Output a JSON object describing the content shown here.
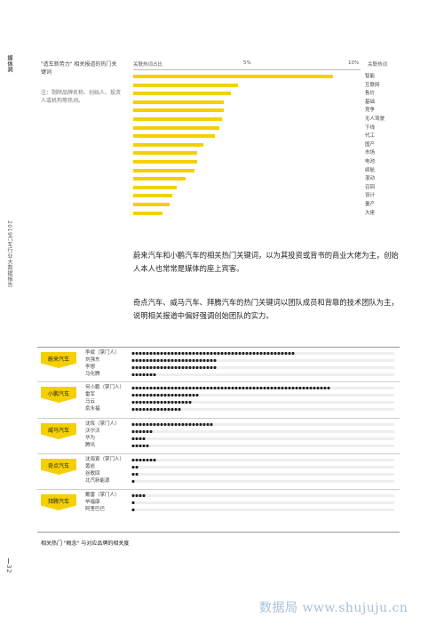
{
  "sidebar": {
    "top_label": "媒体洞",
    "report_label": "2019汽车行业大数据报告",
    "page_number": "32"
  },
  "notes": {
    "title": "\"造车新势力\" 相关报道的热门关键词",
    "subtitle": "注：剔除品牌名称、创始人、投资人或机构等热词。"
  },
  "chart_data": {
    "type": "bar",
    "orientation": "horizontal",
    "axis_left_label": "关联热词占比",
    "axis_mid_tick": "5%",
    "axis_right_tick": "10%",
    "keyword_header": "关联热词",
    "xlim": [
      0,
      10
    ],
    "categories": [
      "智能",
      "互联网",
      "售价",
      "基础",
      "竞争",
      "无人驾驶",
      "下线",
      "代工",
      "国产",
      "市场",
      "电池",
      "续航",
      "混动",
      "召回",
      "设计",
      "量产",
      "大佬"
    ],
    "values": [
      8.8,
      4.6,
      4.3,
      4.0,
      4.0,
      3.9,
      3.8,
      3.6,
      3.1,
      2.8,
      2.8,
      2.7,
      2.3,
      1.9,
      1.7,
      1.6,
      1.3
    ]
  },
  "paragraphs": {
    "p1": "蔚来汽车和小鹏汽车的相关热门关键词，以为其投资或背书的商业大佬为主，创始人本人也常常是媒体的座上宾客。",
    "p2": "奇点汽车、威马汽车、拜腾汽车的热门关键词以团队成员和背靠的技术团队为主，说明相关报道中偏好强调创始团队的实力。"
  },
  "relation_table": {
    "groups": [
      {
        "brand": "蔚来汽车",
        "people": [
          {
            "name": "李斌（掌门人）",
            "value": 0.62
          },
          {
            "name": "刘强东",
            "value": 0.33
          },
          {
            "name": "李想",
            "value": 0.33
          },
          {
            "name": "马化腾",
            "value": 0.09
          }
        ]
      },
      {
        "brand": "小鹏汽车",
        "people": [
          {
            "name": "何小鹏（掌门人）",
            "value": 0.76
          },
          {
            "name": "雷军",
            "value": 0.26
          },
          {
            "name": "马云",
            "value": 0.23
          },
          {
            "name": "俞永福",
            "value": 0.19
          }
        ]
      },
      {
        "brand": "威马汽车",
        "people": [
          {
            "name": "沈晖（掌门人）",
            "value": 0.31
          },
          {
            "name": "沃尔沃",
            "value": 0.08
          },
          {
            "name": "华为",
            "value": 0.06
          },
          {
            "name": "腾讯",
            "value": 0.07
          }
        ]
      },
      {
        "brand": "奇点汽车",
        "people": [
          {
            "name": "沈海寅（掌门人）",
            "value": 0.09
          },
          {
            "name": "黄岩",
            "value": 0.03
          },
          {
            "name": "谷歌回",
            "value": 0.03
          },
          {
            "name": "北汽新能源",
            "value": 0.02
          }
        ]
      },
      {
        "brand": "拜腾汽车",
        "people": [
          {
            "name": "戴雷（掌门人）",
            "value": 0.05
          },
          {
            "name": "毕福康",
            "value": 0.02
          },
          {
            "name": "阿里巴巴",
            "value": 0.02
          }
        ]
      }
    ]
  },
  "caption": "相关热门 \"概念\" 与对应品牌的相关度",
  "watermark": "数据局 www.shujuju.cn",
  "colors": {
    "accent": "#f5d000",
    "dot": "#222222",
    "track": "#eeeeee"
  }
}
